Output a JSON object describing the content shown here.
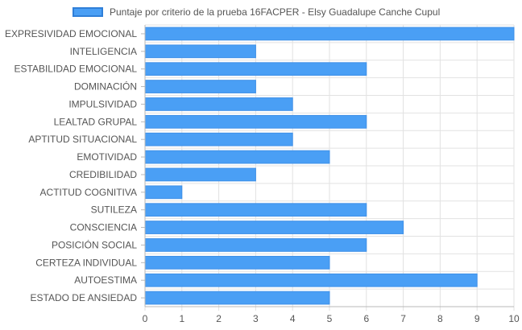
{
  "legend": {
    "label": "Puntaje por criterio de la prueba 16FACPER - Elsy Guadalupe Canche Cupul",
    "color": "#4a9ff5"
  },
  "chart_data": {
    "type": "bar",
    "orientation": "horizontal",
    "title": "",
    "xlabel": "",
    "ylabel": "",
    "xlim": [
      0,
      10
    ],
    "x_ticks": [
      0,
      1,
      2,
      3,
      4,
      5,
      6,
      7,
      8,
      9,
      10
    ],
    "grid": true,
    "legend_position": "top",
    "categories": [
      "EXPRESIVIDAD EMOCIONAL",
      "INTELIGENCIA",
      "ESTABILIDAD EMOCIONAL",
      "DOMINACIÓN",
      "IMPULSIVIDAD",
      "LEALTAD GRUPAL",
      "APTITUD SITUACIONAL",
      "EMOTIVIDAD",
      "CREDIBILIDAD",
      "ACTITUD COGNITIVA",
      "SUTILEZA",
      "CONSCIENCIA",
      "POSICIÓN SOCIAL",
      "CERTEZA INDIVIDUAL",
      "AUTOESTIMA",
      "ESTADO DE ANSIEDAD"
    ],
    "series": [
      {
        "name": "Puntaje por criterio de la prueba 16FACPER - Elsy Guadalupe Canche Cupul",
        "color": "#4a9ff5",
        "values": [
          10,
          3,
          6,
          3,
          4,
          6,
          4,
          5,
          3,
          1,
          6,
          7,
          6,
          5,
          9,
          5
        ]
      }
    ]
  }
}
